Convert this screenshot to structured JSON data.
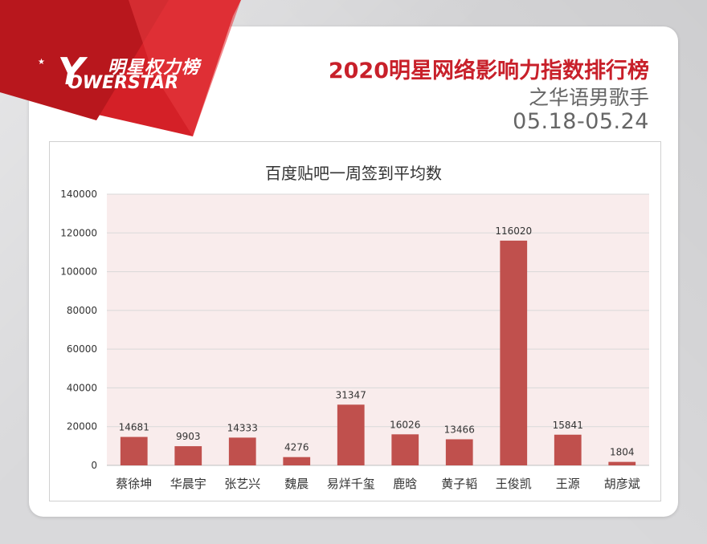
{
  "brand": {
    "logo_cn": "明星权力榜",
    "logo_letter": "Y",
    "logo_en": "OWERSTAR"
  },
  "header": {
    "title": "2020明星网络影响力指数排行榜",
    "subtitle": "之华语男歌手",
    "date_range": "05.18-05.24"
  },
  "colors": {
    "accent": "#c8202a",
    "bar": "#c0504d",
    "plot_bg": "#f9ecec"
  },
  "chart_data": {
    "type": "bar",
    "title": "百度贴吧一周签到平均数",
    "xlabel": "",
    "ylabel": "",
    "categories": [
      "蔡徐坤",
      "华晨宇",
      "张艺兴",
      "魏晨",
      "易烊千玺",
      "鹿晗",
      "黄子韬",
      "王俊凯",
      "王源",
      "胡彦斌"
    ],
    "values": [
      14681,
      9903,
      14333,
      4276,
      31347,
      16026,
      13466,
      116020,
      15841,
      1804
    ],
    "ylim": [
      0,
      140000
    ],
    "yticks": [
      0,
      20000,
      40000,
      60000,
      80000,
      100000,
      120000,
      140000
    ],
    "grid": true,
    "data_labels": true
  }
}
